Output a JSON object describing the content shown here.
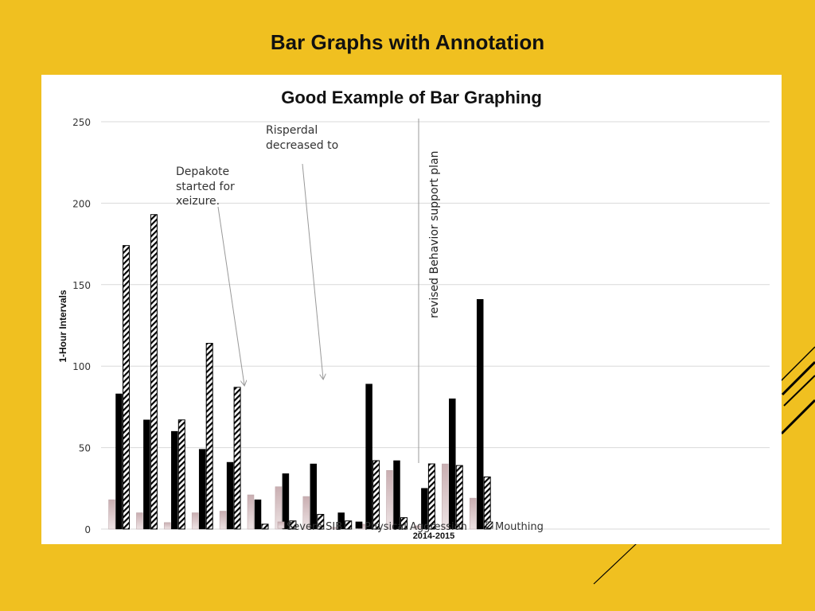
{
  "slide": {
    "title": "Bar Graphs with Annotation"
  },
  "colors": {
    "background": "#F0C020",
    "panel": "#FFFFFF",
    "gridline": "#D9D9D9",
    "severe_sib": "#D7C3C5",
    "physical_aggression": "#000000",
    "mouthing_fill": "#FFFFFF",
    "mouthing_stripe": "#000000"
  },
  "chart_data": {
    "type": "bar",
    "title": "Good Example of Bar Graphing",
    "xlabel": "2014-2015",
    "ylabel": "1-Hour Intervals",
    "ylim": [
      0,
      250
    ],
    "yticks": [
      "0",
      "50",
      "100",
      "150",
      "200",
      "250"
    ],
    "grid": true,
    "legend_position": "bottom",
    "categories": [
      "",
      "",
      "",
      "",
      "",
      "",
      "",
      "",
      "",
      "",
      "",
      "",
      "",
      ""
    ],
    "series": [
      {
        "name": "Severe SIB",
        "values": [
          18,
          10,
          4,
          10,
          11,
          21,
          26,
          20,
          1,
          3,
          36,
          2,
          40,
          19
        ]
      },
      {
        "name": "Physical Aggression",
        "values": [
          83,
          67,
          60,
          49,
          41,
          18,
          34,
          40,
          10,
          89,
          42,
          25,
          80,
          141
        ]
      },
      {
        "name": "Mouthing",
        "values": [
          174,
          193,
          67,
          114,
          87,
          3,
          5,
          9,
          5,
          42,
          7,
          40,
          39,
          32
        ]
      }
    ],
    "annotations": [
      {
        "text": [
          "Depakote",
          "started for",
          "xeizure."
        ],
        "target_value": 88
      },
      {
        "text": [
          "Risperdal",
          "decreased to"
        ],
        "target_value": 90
      },
      {
        "text": [
          "revised Behavior support plan"
        ]
      }
    ]
  }
}
